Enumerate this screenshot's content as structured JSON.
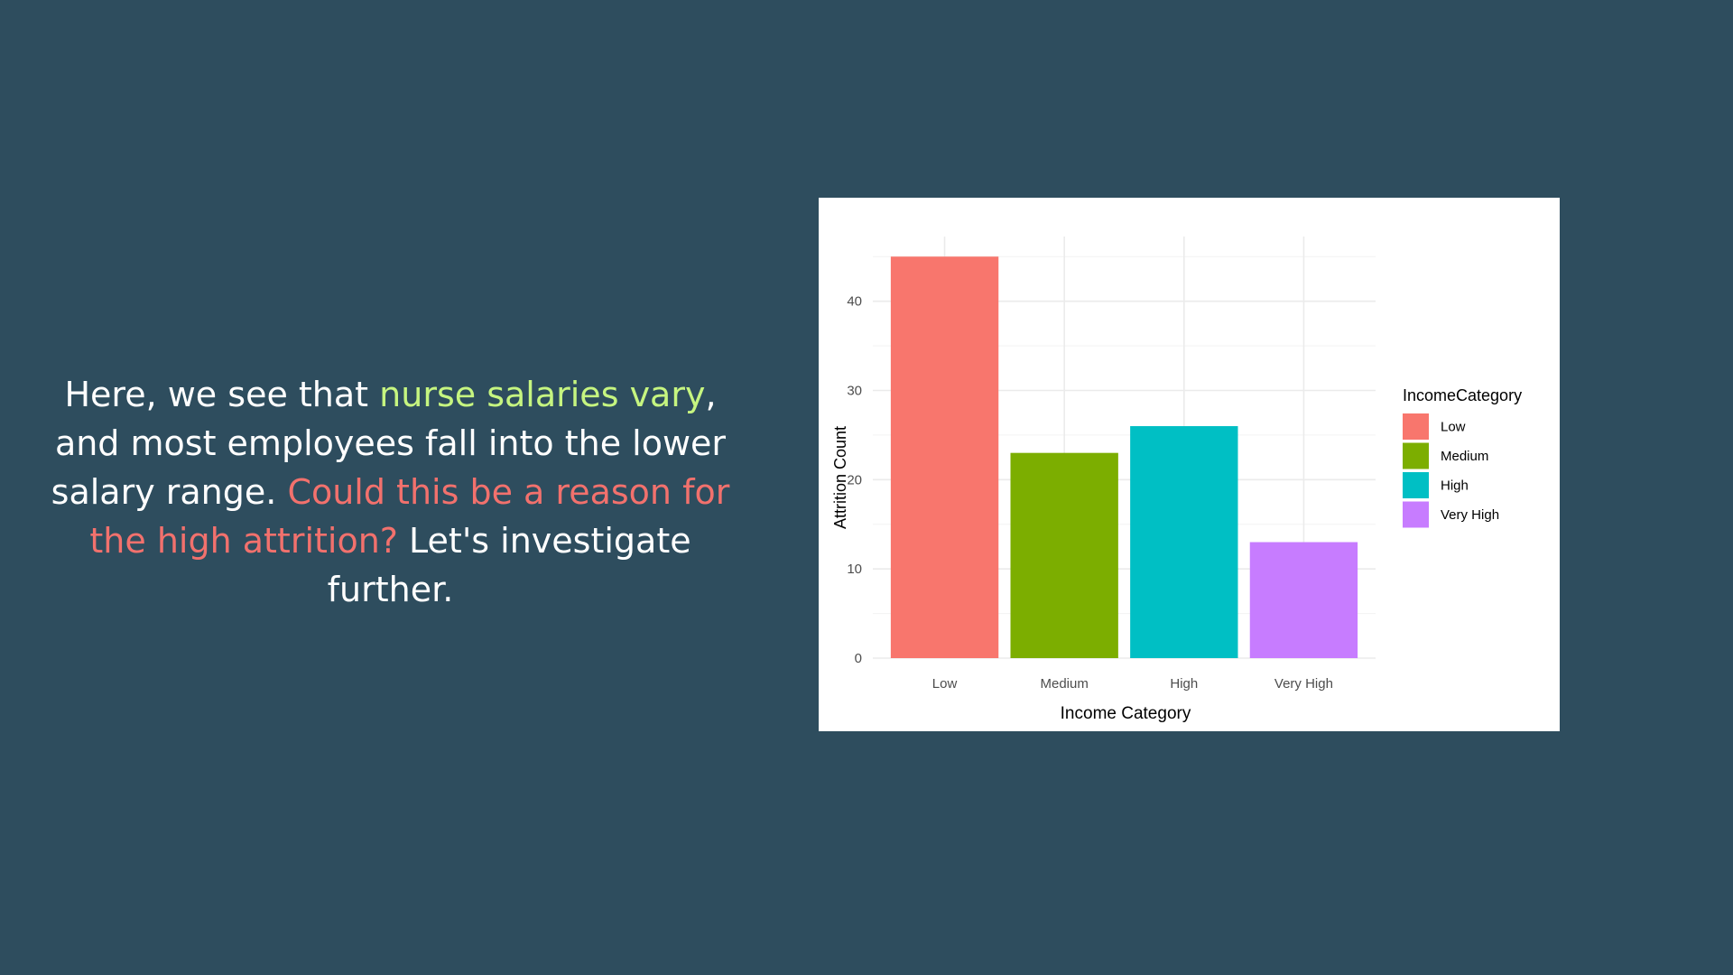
{
  "text": {
    "part1": "Here, we see that ",
    "highlight1": "nurse salaries vary",
    "part2": ", and most employees fall into the lower salary range. ",
    "highlight2": "Could this be a reason for the high attrition?",
    "part3": " Let's investigate further."
  },
  "colors": {
    "background": "#2e4d5e",
    "highlight_green": "#c6f580",
    "highlight_red": "#f2716d"
  },
  "chart_data": {
    "type": "bar",
    "categories": [
      "Low",
      "Medium",
      "High",
      "Very High"
    ],
    "values": [
      45,
      23,
      26,
      13
    ],
    "colors": [
      "#f8766d",
      "#7cae00",
      "#00bfc4",
      "#c77cff"
    ],
    "xlabel": "Income Category",
    "ylabel": "Attrition Count",
    "ylim": [
      0,
      47.25
    ],
    "yticks": [
      0,
      10,
      20,
      30,
      40
    ],
    "grid": true,
    "legend": {
      "title": "IncomeCategory",
      "placement": "right",
      "items": [
        "Low",
        "Medium",
        "High",
        "Very High"
      ]
    }
  }
}
